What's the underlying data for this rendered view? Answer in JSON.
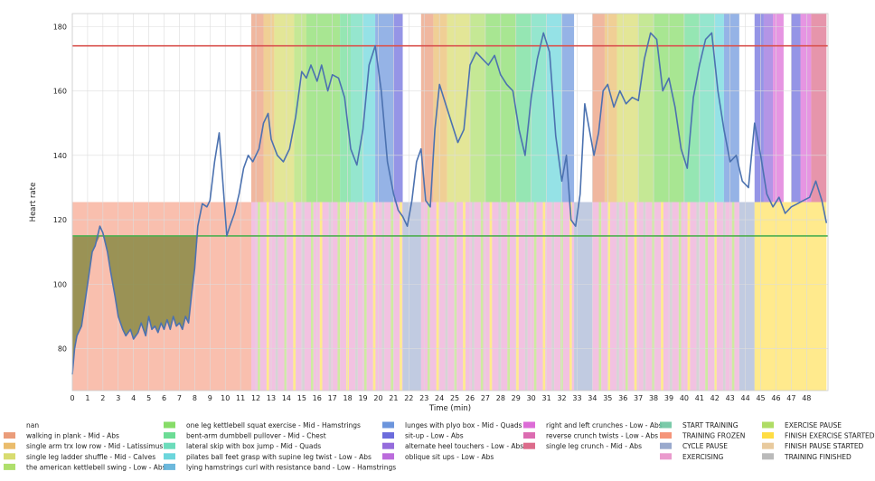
{
  "chart_data": {
    "type": "line",
    "xlabel": "Time (min)",
    "ylabel": "Heart rate",
    "xlim": [
      0,
      49.4
    ],
    "ylim": [
      67,
      184
    ],
    "x_ticks": [
      0,
      1,
      2,
      3,
      4,
      5,
      6,
      7,
      8,
      9,
      10,
      11,
      12,
      13,
      14,
      15,
      16,
      17,
      18,
      19,
      20,
      21,
      22,
      23,
      24,
      25,
      26,
      27,
      28,
      29,
      30,
      31,
      32,
      33,
      34,
      35,
      36,
      37,
      38,
      39,
      40,
      41,
      42,
      43,
      44,
      45,
      46,
      47,
      48
    ],
    "y_ticks": [
      80,
      100,
      120,
      140,
      160,
      180
    ],
    "grid": true,
    "reference_lines": [
      {
        "value": 174,
        "color": "#d9534f"
      },
      {
        "value": 115,
        "color": "#4caf50"
      }
    ],
    "heart_rate": {
      "color": "#4c72b0",
      "x": [
        0,
        0.15,
        0.3,
        0.6,
        1.0,
        1.3,
        1.5,
        1.8,
        2.0,
        2.3,
        2.5,
        2.8,
        3.0,
        3.3,
        3.5,
        3.8,
        4.0,
        4.3,
        4.5,
        4.8,
        5.0,
        5.2,
        5.4,
        5.6,
        5.8,
        6.0,
        6.2,
        6.4,
        6.6,
        6.8,
        7.0,
        7.2,
        7.4,
        7.6,
        7.8,
        8.0,
        8.2,
        8.5,
        8.8,
        9.0,
        9.3,
        9.6,
        9.9,
        10.1,
        10.3,
        10.6,
        10.9,
        11.2,
        11.5,
        11.8,
        12.2,
        12.5,
        12.8,
        13.0,
        13.4,
        13.8,
        14.2,
        14.6,
        15.0,
        15.3,
        15.6,
        16.0,
        16.3,
        16.7,
        17.0,
        17.4,
        17.8,
        18.2,
        18.6,
        19.0,
        19.4,
        19.8,
        20.2,
        20.6,
        21.0,
        21.3,
        21.6,
        21.9,
        22.2,
        22.5,
        22.8,
        23.1,
        23.4,
        23.7,
        24.0,
        24.4,
        24.8,
        25.2,
        25.6,
        26.0,
        26.4,
        26.8,
        27.2,
        27.6,
        28.0,
        28.4,
        28.8,
        29.2,
        29.6,
        30.0,
        30.4,
        30.8,
        31.2,
        31.6,
        32.0,
        32.3,
        32.6,
        32.9,
        33.2,
        33.5,
        33.8,
        34.1,
        34.4,
        34.7,
        35.0,
        35.4,
        35.8,
        36.2,
        36.6,
        37.0,
        37.4,
        37.8,
        38.2,
        38.6,
        39.0,
        39.4,
        39.8,
        40.2,
        40.6,
        41.0,
        41.4,
        41.8,
        42.2,
        42.6,
        43.0,
        43.4,
        43.8,
        44.2,
        44.6,
        45.0,
        45.4,
        45.8,
        46.2,
        46.6,
        47.0,
        47.4,
        47.8,
        48.2,
        48.6,
        49.0,
        49.3
      ],
      "y": [
        72,
        80,
        84,
        87,
        100,
        110,
        112,
        118,
        116,
        110,
        104,
        96,
        90,
        86,
        84,
        86,
        83,
        85,
        88,
        84,
        90,
        86,
        87,
        85,
        88,
        86,
        89,
        86,
        90,
        87,
        88,
        86,
        90,
        88,
        97,
        105,
        118,
        125,
        124,
        126,
        138,
        147,
        128,
        115,
        118,
        122,
        128,
        136,
        140,
        138,
        142,
        150,
        153,
        145,
        140,
        138,
        142,
        152,
        166,
        164,
        168,
        163,
        168,
        160,
        165,
        164,
        158,
        142,
        137,
        148,
        168,
        174,
        160,
        138,
        128,
        123,
        121,
        118,
        126,
        138,
        142,
        126,
        124,
        148,
        162,
        156,
        150,
        144,
        148,
        168,
        172,
        170,
        168,
        171,
        165,
        162,
        160,
        148,
        140,
        158,
        170,
        178,
        172,
        146,
        132,
        140,
        120,
        118,
        128,
        156,
        148,
        140,
        147,
        160,
        162,
        155,
        160,
        156,
        158,
        157,
        170,
        178,
        176,
        160,
        164,
        155,
        142,
        136,
        158,
        168,
        176,
        178,
        160,
        148,
        138,
        140,
        132,
        130,
        150,
        140,
        128,
        124,
        127,
        122,
        124,
        125,
        126,
        127,
        132,
        126,
        119
      ]
    }
  },
  "legend": {
    "col1": [
      "nan",
      "walking in plank - Mid -  Abs",
      "single arm trx low row - Mid -  Latissimus",
      "single leg ladder shuffle - Mid -  Calves",
      "the american kettlebell swing - Low -  Abs"
    ],
    "col2": [
      "one leg kettlebell squat exercise - Mid -  Hamstrings",
      "bent-arm dumbbell pullover  - Mid -  Chest",
      "lateral skip with box jump  - Mid -  Quads",
      "pilates ball feet grasp with supine leg twist - Low -  Abs",
      "lying hamstrings curl with resistance band - Low -  Hamstrings"
    ],
    "col3": [
      "lunges with plyo box - Mid -  Quads",
      "sit-up  - Low -  Abs",
      "alternate heel touchers  - Low -  Abs",
      "oblique sit ups - Low -  Abs"
    ],
    "col4": [
      "right and left crunches - Low -  Abs",
      "reverse crunch twists - Low -  Abs",
      "single leg crunch - Mid -  Abs"
    ],
    "col5": [
      "START TRAINING",
      "TRAINING FROZEN",
      "CYCLE PAUSE",
      "EXERCISING"
    ],
    "col6": [
      "EXERCISE PAUSE",
      "FINISH EXERCISE STARTED",
      "FINISH PAUSE STARTED",
      "TRAINING FINISHED"
    ],
    "colors": {
      "col1": [
        "#ffffff",
        "#e8916c",
        "#e8b55c",
        "#d4d860",
        "#a6dc5c"
      ],
      "col2": [
        "#7ad858",
        "#5cd88a",
        "#5cd8b4",
        "#5cd2d8",
        "#5cb0d8"
      ],
      "col3": [
        "#5c8ad8",
        "#5c5cd8",
        "#8a5cd8",
        "#b45cd8"
      ],
      "col4": [
        "#d85cd2",
        "#d85ca8",
        "#d85c7e"
      ],
      "col5": [
        "#6cc4a0",
        "#f48a6c",
        "#8ea0c8",
        "#e890c8"
      ],
      "col6": [
        "#a6d854",
        "#ffd92f",
        "#e5c494",
        "#b3b3b3"
      ]
    }
  },
  "phase_bands": {
    "top": [
      {
        "x0": 11.7,
        "x1": 12.5,
        "color": "#e8916c"
      },
      {
        "x0": 12.5,
        "x1": 13.2,
        "color": "#e8b55c"
      },
      {
        "x0": 13.2,
        "x1": 14.5,
        "color": "#d4d860"
      },
      {
        "x0": 14.5,
        "x1": 15.3,
        "color": "#a6dc5c"
      },
      {
        "x0": 15.3,
        "x1": 17.5,
        "color": "#7ad858"
      },
      {
        "x0": 17.5,
        "x1": 18.2,
        "color": "#5cd88a"
      },
      {
        "x0": 18.2,
        "x1": 19.0,
        "color": "#5cd8b4"
      },
      {
        "x0": 19.0,
        "x1": 19.8,
        "color": "#5cd2d8"
      },
      {
        "x0": 19.8,
        "x1": 21.0,
        "color": "#5c8ad8"
      },
      {
        "x0": 21.0,
        "x1": 21.6,
        "color": "#5c5cd8"
      },
      {
        "x0": 22.8,
        "x1": 23.6,
        "color": "#e8916c"
      },
      {
        "x0": 23.6,
        "x1": 24.5,
        "color": "#e8b55c"
      },
      {
        "x0": 24.5,
        "x1": 26.0,
        "color": "#d4d860"
      },
      {
        "x0": 26.0,
        "x1": 27.0,
        "color": "#a6dc5c"
      },
      {
        "x0": 27.0,
        "x1": 29.0,
        "color": "#7ad858"
      },
      {
        "x0": 29.0,
        "x1": 30.0,
        "color": "#5cd88a"
      },
      {
        "x0": 30.0,
        "x1": 31.0,
        "color": "#5cd8b4"
      },
      {
        "x0": 31.0,
        "x1": 32.0,
        "color": "#5cd2d8"
      },
      {
        "x0": 32.0,
        "x1": 32.8,
        "color": "#5c8ad8"
      },
      {
        "x0": 34.0,
        "x1": 34.8,
        "color": "#e8916c"
      },
      {
        "x0": 34.8,
        "x1": 35.6,
        "color": "#e8b55c"
      },
      {
        "x0": 35.6,
        "x1": 37.0,
        "color": "#d4d860"
      },
      {
        "x0": 37.0,
        "x1": 38.0,
        "color": "#a6dc5c"
      },
      {
        "x0": 38.0,
        "x1": 40.0,
        "color": "#7ad858"
      },
      {
        "x0": 40.0,
        "x1": 41.0,
        "color": "#5cd88a"
      },
      {
        "x0": 41.0,
        "x1": 42.0,
        "color": "#5cd8b4"
      },
      {
        "x0": 42.0,
        "x1": 42.6,
        "color": "#5cd2d8"
      },
      {
        "x0": 42.6,
        "x1": 43.6,
        "color": "#5c8ad8"
      },
      {
        "x0": 44.6,
        "x1": 45.2,
        "color": "#5c5cd8"
      },
      {
        "x0": 45.2,
        "x1": 45.8,
        "color": "#8a5cd8"
      },
      {
        "x0": 45.8,
        "x1": 46.5,
        "color": "#d85cd2"
      },
      {
        "x0": 46.5,
        "x1": 47.0,
        "color": "#ffffff"
      },
      {
        "x0": 47.0,
        "x1": 47.6,
        "color": "#5c5cd8"
      },
      {
        "x0": 47.6,
        "x1": 48.3,
        "color": "#d85cd2"
      },
      {
        "x0": 48.3,
        "x1": 49.3,
        "color": "#d85c7e"
      }
    ],
    "bottom": [
      {
        "x0": 0,
        "x1": 11.7,
        "color": "#f48a6c"
      },
      {
        "x0": 21.6,
        "x1": 22.8,
        "color": "#8ea0c8"
      },
      {
        "x0": 32.8,
        "x1": 34.0,
        "color": "#8ea0c8"
      },
      {
        "x0": 43.6,
        "x1": 44.6,
        "color": "#8ea0c8"
      },
      {
        "x0": 44.6,
        "x1": 49.3,
        "color": "#ffd92f"
      }
    ],
    "top_gaps": [
      {
        "x0": 21.6,
        "x1": 22.8
      },
      {
        "x0": 32.8,
        "x1": 34.0
      },
      {
        "x0": 43.6,
        "x1": 44.6
      },
      {
        "x0": 46.5,
        "x1": 47.0
      }
    ]
  }
}
